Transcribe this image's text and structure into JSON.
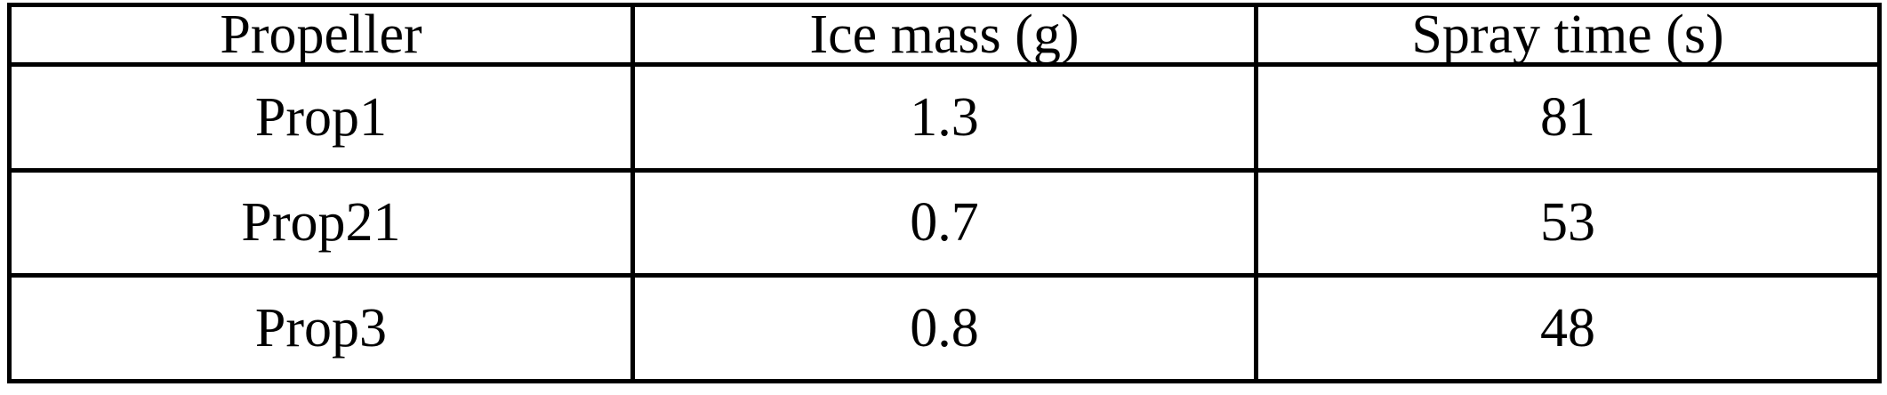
{
  "table": {
    "headers": [
      "Propeller",
      "Ice mass (g)",
      "Spray time (s)"
    ],
    "rows": [
      [
        "Prop1",
        "1.3",
        "81"
      ],
      [
        "Prop21",
        "0.7",
        "53"
      ],
      [
        "Prop3",
        "0.8",
        "48"
      ]
    ]
  },
  "chart_data": {
    "type": "table",
    "title": "",
    "columns": [
      "Propeller",
      "Ice mass (g)",
      "Spray time (s)"
    ],
    "rows": [
      {
        "propeller": "Prop1",
        "ice_mass_g": 1.3,
        "spray_time_s": 81
      },
      {
        "propeller": "Prop21",
        "ice_mass_g": 0.7,
        "spray_time_s": 53
      },
      {
        "propeller": "Prop3",
        "ice_mass_g": 0.8,
        "spray_time_s": 48
      }
    ]
  },
  "colors": {
    "border": "#000000",
    "background": "#ffffff",
    "text": "#000000"
  }
}
